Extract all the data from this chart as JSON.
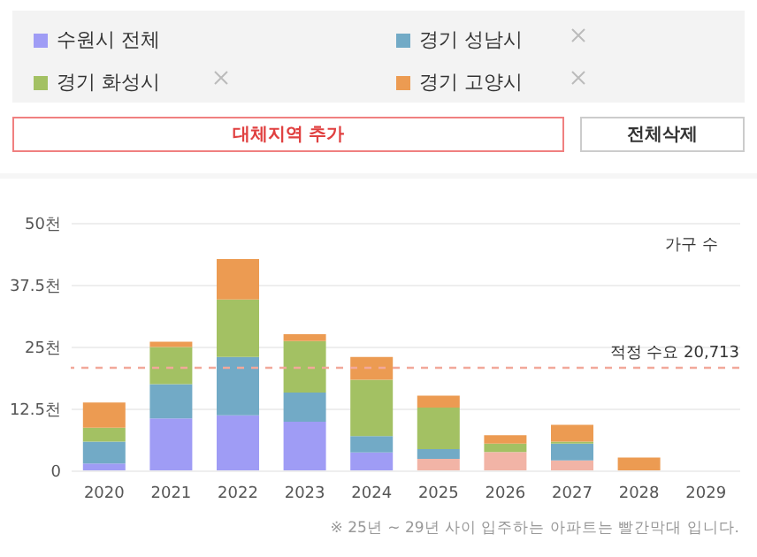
{
  "chart_data": {
    "type": "bar",
    "stacked": true,
    "ylabel": "가구 수",
    "categories": [
      "2020",
      "2021",
      "2022",
      "2023",
      "2024",
      "2025",
      "2026",
      "2027",
      "2028",
      "2029"
    ],
    "series": [
      {
        "name": "수원시 전체",
        "color": "#9f9cf5",
        "colors": [
          "#9f9cf5",
          "#9f9cf5",
          "#9f9cf5",
          "#9f9cf5",
          "#9f9cf5",
          "#f2b4a6",
          "#f2b4a6",
          "#f2b4a6",
          "#f2b4a6",
          "#f2b4a6"
        ],
        "values": [
          1.4,
          10.5,
          11.1,
          9.8,
          3.6,
          2.3,
          3.7,
          2.0,
          0,
          0
        ]
      },
      {
        "name": "경기 성남시",
        "color": "#72aac6",
        "values": [
          4.4,
          6.9,
          11.8,
          5.9,
          3.3,
          2.0,
          0,
          3.4,
          0,
          0
        ]
      },
      {
        "name": "경기 화성시",
        "color": "#a3c163",
        "values": [
          2.8,
          7.5,
          11.6,
          10.4,
          11.4,
          8.4,
          1.7,
          0.4,
          0,
          0
        ]
      },
      {
        "name": "경기 고양시",
        "color": "#ec9b52",
        "values": [
          5.1,
          1.1,
          8.2,
          1.4,
          4.6,
          2.4,
          1.7,
          3.4,
          2.6,
          0
        ]
      }
    ],
    "ylim": [
      0,
      50
    ],
    "yticks": [
      0,
      {
        "value": 12.5,
        "label": "12.5천"
      },
      {
        "value": 25,
        "label": "25천"
      },
      {
        "value": 37.5,
        "label": "37.5천"
      },
      {
        "value": 50,
        "label": "50천"
      }
    ],
    "grid": "y",
    "legend": "top",
    "ref_lines": [
      {
        "axis": "y",
        "value": 20.713,
        "label": "적정 수요 20,713",
        "color": "#f2a89a",
        "line_style": "dashed"
      }
    ],
    "annotations": [
      "대체지역 추가",
      "전체삭제",
      "※ 25년 ~ 29년 사이 입주하는 아파트는 빨간막대 입니다."
    ]
  }
}
